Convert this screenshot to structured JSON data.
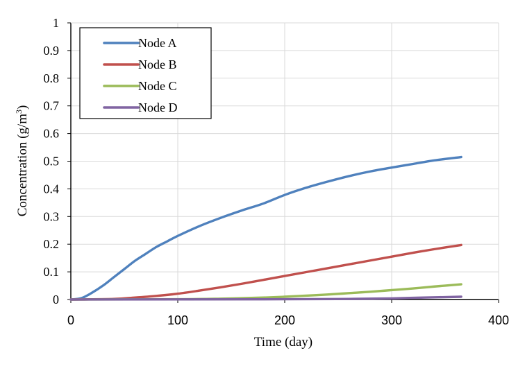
{
  "chart_data": {
    "type": "line",
    "title": "",
    "xlabel": "Time (day)",
    "ylabel": {
      "main": "Concentration (g/m",
      "superscript": "3",
      "closing": ")"
    },
    "xlim": [
      0,
      400
    ],
    "ylim": [
      0,
      1
    ],
    "x_ticks": [
      0,
      100,
      200,
      300,
      400
    ],
    "x_tick_labels": [
      "0",
      "100",
      "200",
      "300",
      "400"
    ],
    "y_ticks": [
      0,
      0.1,
      0.2,
      0.3,
      0.4,
      0.5,
      0.6,
      0.7,
      0.8,
      0.9,
      1
    ],
    "y_tick_labels": [
      "0",
      "0.1",
      "0.2",
      "0.3",
      "0.4",
      "0.5",
      "0.6",
      "0.7",
      "0.8",
      "0.9",
      "1"
    ],
    "grid": "vertical-and-horizontal",
    "legend_position": "top-left",
    "series": [
      {
        "name": "Node A",
        "color": "#4f81bd",
        "points": [
          [
            0,
            0
          ],
          [
            10,
            0.005
          ],
          [
            20,
            0.025
          ],
          [
            30,
            0.05
          ],
          [
            40,
            0.08
          ],
          [
            50,
            0.11
          ],
          [
            60,
            0.14
          ],
          [
            70,
            0.165
          ],
          [
            80,
            0.19
          ],
          [
            90,
            0.21
          ],
          [
            100,
            0.23
          ],
          [
            120,
            0.265
          ],
          [
            140,
            0.295
          ],
          [
            160,
            0.322
          ],
          [
            180,
            0.347
          ],
          [
            200,
            0.378
          ],
          [
            220,
            0.404
          ],
          [
            240,
            0.426
          ],
          [
            260,
            0.446
          ],
          [
            280,
            0.463
          ],
          [
            300,
            0.477
          ],
          [
            320,
            0.49
          ],
          [
            340,
            0.503
          ],
          [
            365,
            0.515
          ]
        ]
      },
      {
        "name": "Node B",
        "color": "#c0504d",
        "points": [
          [
            0,
            0
          ],
          [
            40,
            0.002
          ],
          [
            60,
            0.007
          ],
          [
            80,
            0.013
          ],
          [
            100,
            0.021
          ],
          [
            120,
            0.032
          ],
          [
            140,
            0.044
          ],
          [
            160,
            0.057
          ],
          [
            180,
            0.071
          ],
          [
            200,
            0.085
          ],
          [
            220,
            0.099
          ],
          [
            240,
            0.113
          ],
          [
            260,
            0.127
          ],
          [
            280,
            0.141
          ],
          [
            300,
            0.155
          ],
          [
            320,
            0.169
          ],
          [
            340,
            0.182
          ],
          [
            365,
            0.197
          ]
        ]
      },
      {
        "name": "Node C",
        "color": "#9bbb59",
        "points": [
          [
            0,
            0
          ],
          [
            100,
            0.001
          ],
          [
            140,
            0.003
          ],
          [
            180,
            0.007
          ],
          [
            200,
            0.01
          ],
          [
            220,
            0.014
          ],
          [
            240,
            0.018
          ],
          [
            260,
            0.023
          ],
          [
            280,
            0.028
          ],
          [
            300,
            0.034
          ],
          [
            320,
            0.04
          ],
          [
            340,
            0.047
          ],
          [
            365,
            0.055
          ]
        ]
      },
      {
        "name": "Node D",
        "color": "#8064a2",
        "points": [
          [
            0,
            0
          ],
          [
            200,
            0.001
          ],
          [
            260,
            0.002
          ],
          [
            300,
            0.004
          ],
          [
            330,
            0.007
          ],
          [
            365,
            0.01
          ]
        ]
      }
    ]
  }
}
